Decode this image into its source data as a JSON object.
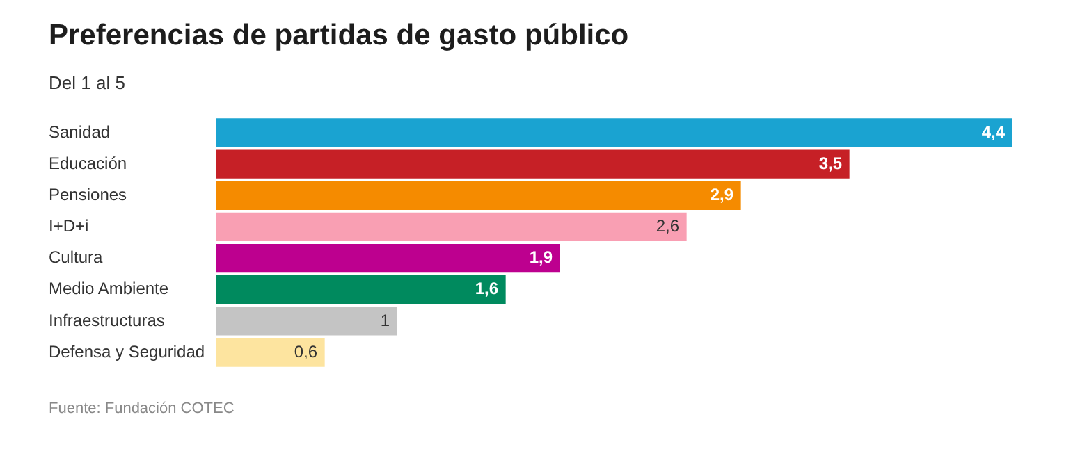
{
  "chart_data": {
    "type": "bar",
    "orientation": "horizontal",
    "title": "Preferencias de partidas de gasto público",
    "subtitle": "Del 1 al 5",
    "categories": [
      "Sanidad",
      "Educación",
      "Pensiones",
      "I+D+i",
      "Cultura",
      "Medio Ambiente",
      "Infraestructuras",
      "Defensa y Seguridad"
    ],
    "values": [
      4.4,
      3.5,
      2.9,
      2.6,
      1.9,
      1.6,
      1,
      0.6
    ],
    "colors": [
      "#1aa3d1",
      "#c62026",
      "#f58b00",
      "#f99fb3",
      "#bd008f",
      "#008a5e",
      "#c4c4c4",
      "#fde49f"
    ],
    "value_labels": [
      "4,4",
      "3,5",
      "2,9",
      "2,6",
      "1,9",
      "1,6",
      "1",
      "0,6"
    ],
    "xlim": [
      0,
      4.4
    ],
    "legend": false,
    "annotations": [
      "Fuente: Fundación COTEC"
    ]
  }
}
